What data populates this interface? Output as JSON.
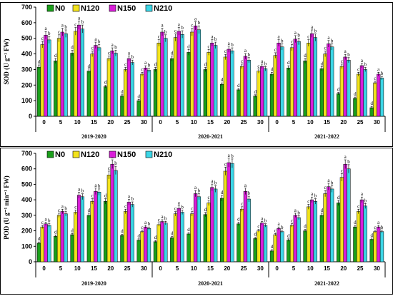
{
  "chart_data": [
    {
      "type": "bar",
      "ylabel": "SOD (U g⁻¹ FW)",
      "ylim": [
        0,
        700
      ],
      "yticks": [
        0,
        100,
        200,
        300,
        400,
        500,
        600,
        700
      ],
      "grid": false,
      "legend_position": "top-left",
      "groups": [
        {
          "label": "2019-2020",
          "categories": [
            "0",
            "5",
            "10",
            "15",
            "20",
            "25",
            "30"
          ]
        },
        {
          "label": "2020-2021",
          "categories": [
            "0",
            "5",
            "10",
            "15",
            "20",
            "25",
            "30"
          ]
        },
        {
          "label": "2021-2022",
          "categories": [
            "0",
            "5",
            "10",
            "15",
            "20",
            "25",
            "30"
          ]
        }
      ],
      "series": [
        {
          "name": "N0",
          "color": "#1a9e1a",
          "values": [
            315,
            355,
            405,
            290,
            190,
            130,
            100,
            300,
            370,
            410,
            300,
            205,
            170,
            130,
            270,
            310,
            355,
            305,
            145,
            115,
            55
          ],
          "letters": [
            "d",
            "d",
            "d",
            "d",
            "d",
            "d",
            "d",
            "d",
            "d",
            "d",
            "d",
            "d",
            "d",
            "d",
            "d",
            "d",
            "d",
            "d",
            "d",
            "d",
            "d"
          ]
        },
        {
          "name": "N120",
          "color": "#f2e21c",
          "values": [
            460,
            500,
            545,
            400,
            370,
            300,
            270,
            470,
            505,
            540,
            410,
            380,
            320,
            290,
            390,
            440,
            470,
            400,
            320,
            270,
            215
          ],
          "letters": [
            "c",
            "c",
            "c",
            "c",
            "c",
            "c",
            "c",
            "c",
            "c",
            "c",
            "c",
            "c",
            "c",
            "c",
            "c",
            "c",
            "c",
            "c",
            "c",
            "c",
            "c"
          ]
        },
        {
          "name": "N150",
          "color": "#d91ed9",
          "values": [
            520,
            540,
            585,
            455,
            420,
            370,
            310,
            540,
            545,
            580,
            470,
            430,
            385,
            320,
            470,
            495,
            530,
            465,
            380,
            325,
            270
          ],
          "letters": [
            "a",
            "a",
            "a",
            "a",
            "a",
            "a",
            "a",
            "a",
            "a",
            "a",
            "a",
            "a",
            "a",
            "a",
            "a",
            "a",
            "a",
            "a",
            "a",
            "a",
            "a"
          ]
        },
        {
          "name": "N210",
          "color": "#3cd6e6",
          "values": [
            490,
            530,
            560,
            440,
            405,
            345,
            295,
            500,
            525,
            555,
            455,
            420,
            360,
            305,
            445,
            480,
            505,
            445,
            360,
            300,
            245
          ],
          "letters": [
            "b",
            "b",
            "b",
            "b",
            "b",
            "b",
            "b",
            "b",
            "b",
            "b",
            "b",
            "b",
            "b",
            "b",
            "b",
            "b",
            "b",
            "b",
            "b",
            "b",
            "b"
          ]
        }
      ]
    },
    {
      "type": "bar",
      "ylabel": "POD (U g⁻¹ min⁻¹ FW)",
      "ylim": [
        0,
        700
      ],
      "yticks": [
        0,
        100,
        200,
        300,
        400,
        500,
        600,
        700
      ],
      "grid": false,
      "legend_position": "top-left",
      "groups": [
        {
          "label": "2019-2020",
          "categories": [
            "0",
            "5",
            "10",
            "15",
            "20",
            "25",
            "30"
          ]
        },
        {
          "label": "2020-2021",
          "categories": [
            "0",
            "5",
            "10",
            "15",
            "20",
            "25",
            "30"
          ]
        },
        {
          "label": "2021-2022",
          "categories": [
            "0",
            "5",
            "10",
            "15",
            "20",
            "25",
            "30"
          ]
        }
      ],
      "series": [
        {
          "name": "N0",
          "color": "#1a9e1a",
          "values": [
            120,
            165,
            175,
            300,
            390,
            170,
            140,
            130,
            155,
            180,
            305,
            410,
            245,
            150,
            70,
            140,
            200,
            300,
            380,
            225,
            145
          ],
          "letters": [
            "d",
            "d",
            "d",
            "d",
            "d",
            "d",
            "d",
            "d",
            "d",
            "d",
            "d",
            "d",
            "d",
            "d",
            "d",
            "d",
            "d",
            "d",
            "d",
            "d",
            "d"
          ]
        },
        {
          "name": "N120",
          "color": "#f2e21c",
          "values": [
            225,
            300,
            320,
            390,
            560,
            325,
            195,
            240,
            310,
            310,
            380,
            585,
            340,
            200,
            175,
            235,
            355,
            440,
            545,
            325,
            195
          ],
          "letters": [
            "c",
            "c",
            "c",
            "c",
            "c",
            "c",
            "c",
            "c",
            "c",
            "c",
            "c",
            "c",
            "c",
            "c",
            "c",
            "c",
            "c",
            "c",
            "c",
            "c",
            "c"
          ]
        },
        {
          "name": "N150",
          "color": "#d91ed9",
          "values": [
            245,
            325,
            430,
            455,
            630,
            385,
            225,
            260,
            345,
            440,
            480,
            640,
            455,
            250,
            215,
            300,
            400,
            485,
            630,
            400,
            225
          ],
          "letters": [
            "a",
            "a",
            "a",
            "a",
            "a",
            "a",
            "a",
            "a",
            "a",
            "a",
            "a",
            "a",
            "a",
            "a",
            "a",
            "a",
            "a",
            "a",
            "a",
            "a",
            "a"
          ]
        },
        {
          "name": "N210",
          "color": "#3cd6e6",
          "values": [
            235,
            310,
            420,
            450,
            590,
            370,
            215,
            250,
            320,
            420,
            470,
            635,
            405,
            235,
            195,
            285,
            390,
            470,
            600,
            360,
            195
          ],
          "letters": [
            "b",
            "b",
            "b",
            "b",
            "b",
            "b",
            "b",
            "b",
            "b",
            "b",
            "b",
            "b",
            "b",
            "b",
            "b",
            "b",
            "b",
            "b",
            "b",
            "b",
            "b"
          ]
        }
      ]
    }
  ]
}
